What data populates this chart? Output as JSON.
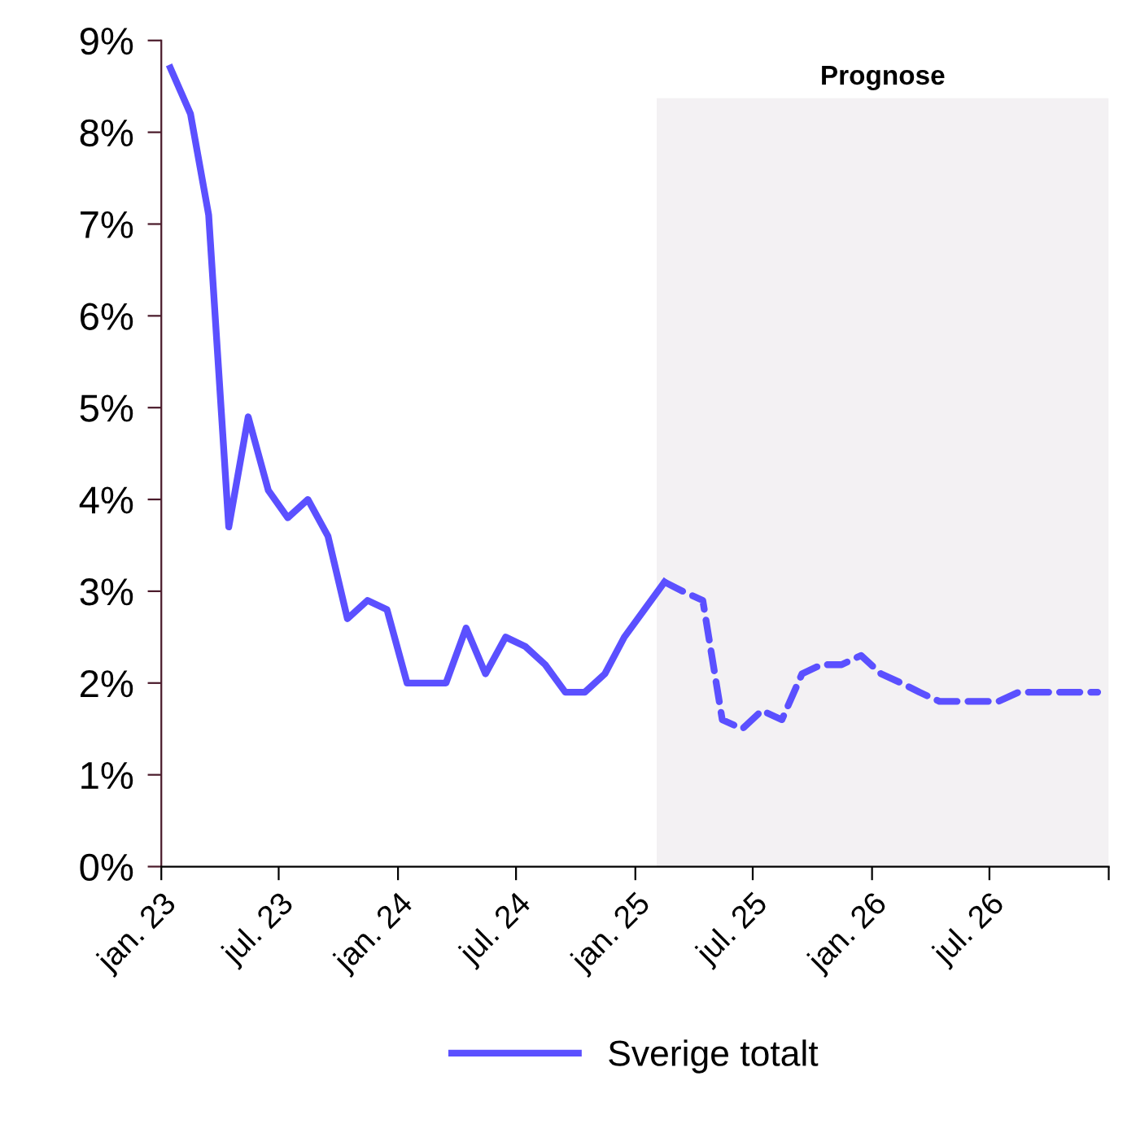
{
  "chart_data": {
    "type": "line",
    "series": [
      {
        "name": "Sverige totalt",
        "color": "#5b50ff",
        "line_style": "solid",
        "x": [
          "2023-01-15",
          "2023-02-15",
          "2023-03-15",
          "2023-04-15",
          "2023-05-15",
          "2023-06-15",
          "2023-07-15",
          "2023-08-15",
          "2023-09-15",
          "2023-10-15",
          "2023-11-15",
          "2023-12-15",
          "2024-01-15",
          "2024-02-15",
          "2024-03-15",
          "2024-04-15",
          "2024-05-15",
          "2024-06-15",
          "2024-07-15",
          "2024-08-15",
          "2024-09-15",
          "2024-10-15",
          "2024-11-15",
          "2024-12-15",
          "2025-01-15",
          "2025-02-15"
        ],
        "values": [
          8.7,
          8.2,
          7.1,
          3.7,
          4.9,
          4.1,
          3.8,
          4.0,
          3.6,
          2.7,
          2.9,
          2.8,
          2.0,
          2.0,
          2.0,
          2.6,
          2.1,
          2.5,
          2.4,
          2.2,
          1.9,
          1.9,
          2.1,
          2.5,
          2.8,
          3.1
        ]
      },
      {
        "color": "#5b50ff",
        "line_style": "dashed",
        "x": [
          "2025-02-15",
          "2025-03-15",
          "2025-04-15",
          "2025-05-15",
          "2025-06-15",
          "2025-07-15",
          "2025-08-15",
          "2025-09-15",
          "2025-10-15",
          "2025-11-15",
          "2025-12-15",
          "2026-01-15",
          "2026-02-15",
          "2026-03-15",
          "2026-04-15",
          "2026-05-15",
          "2026-06-15",
          "2026-07-15",
          "2026-08-15",
          "2026-09-15",
          "2026-10-15",
          "2026-11-15",
          "2026-12-15"
        ],
        "values": [
          3.1,
          3.0,
          2.9,
          1.6,
          1.5,
          1.7,
          1.6,
          2.1,
          2.2,
          2.2,
          2.3,
          2.1,
          2.0,
          1.9,
          1.8,
          1.8,
          1.8,
          1.8,
          1.9,
          1.9,
          1.9,
          1.9,
          1.9
        ]
      }
    ],
    "xlim": [
      "2023-01-01",
      "2027-01-01"
    ],
    "xticks": [
      {
        "value": "2023-01-01",
        "label": "jan. 23"
      },
      {
        "value": "2023-07-01",
        "label": "jul. 23"
      },
      {
        "value": "2024-01-01",
        "label": "jan. 24"
      },
      {
        "value": "2024-07-01",
        "label": "jul. 24"
      },
      {
        "value": "2025-01-01",
        "label": "jan. 25"
      },
      {
        "value": "2025-07-01",
        "label": "jul. 25"
      },
      {
        "value": "2026-01-01",
        "label": "jan. 26"
      },
      {
        "value": "2026-07-01",
        "label": "jul. 26"
      },
      {
        "value": "2027-01-01",
        "label": null
      }
    ],
    "ylim": [
      0,
      9
    ],
    "yticks": [
      {
        "value": 0,
        "label": "0%"
      },
      {
        "value": 1,
        "label": "1%"
      },
      {
        "value": 2,
        "label": "2%"
      },
      {
        "value": 3,
        "label": "3%"
      },
      {
        "value": 4,
        "label": "4%"
      },
      {
        "value": 5,
        "label": "5%"
      },
      {
        "value": 6,
        "label": "6%"
      },
      {
        "value": 7,
        "label": "7%"
      },
      {
        "value": 8,
        "label": "8%"
      },
      {
        "value": 9,
        "label": "9%"
      }
    ],
    "bands": [
      {
        "axis": "x",
        "from": "2025-02-03",
        "to": "2027-01-01",
        "label": "Prognose",
        "color": "#f3f1f3"
      }
    ],
    "grid": false,
    "legend": "bottom",
    "marker": "none"
  }
}
